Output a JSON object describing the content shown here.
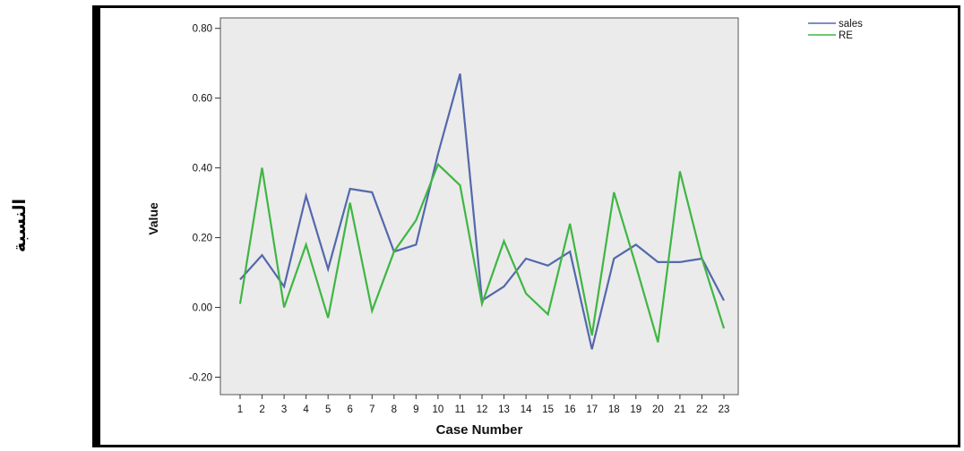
{
  "outer_label": "النسبة",
  "chart_data": {
    "type": "line",
    "xlabel": "Case Number",
    "ylabel": "Value",
    "categories": [
      "1",
      "2",
      "3",
      "4",
      "5",
      "6",
      "7",
      "8",
      "9",
      "10",
      "11",
      "12",
      "13",
      "14",
      "15",
      "16",
      "17",
      "18",
      "19",
      "20",
      "21",
      "22",
      "23"
    ],
    "yticks": [
      {
        "value": 0.8,
        "label": "0.80"
      },
      {
        "value": 0.6,
        "label": "0.60"
      },
      {
        "value": 0.4,
        "label": "0.40"
      },
      {
        "value": 0.2,
        "label": "0.20"
      },
      {
        "value": 0.0,
        "label": "0.00"
      },
      {
        "value": -0.2,
        "label": "-0.20"
      }
    ],
    "ylim": [
      -0.25,
      0.83
    ],
    "grid": false,
    "legend_position": "top-right",
    "series": [
      {
        "name": "sales",
        "color": "#5468ad",
        "values": [
          0.08,
          0.15,
          0.06,
          0.32,
          0.11,
          0.34,
          0.33,
          0.16,
          0.18,
          0.44,
          0.67,
          0.02,
          0.06,
          0.14,
          0.12,
          0.16,
          -0.12,
          0.14,
          0.18,
          0.13,
          0.13,
          0.14,
          0.02
        ]
      },
      {
        "name": "RE",
        "color": "#3fb643",
        "values": [
          0.01,
          0.4,
          0.0,
          0.18,
          -0.03,
          0.3,
          -0.01,
          0.16,
          0.25,
          0.41,
          0.35,
          0.01,
          0.19,
          0.04,
          -0.02,
          0.24,
          -0.08,
          0.33,
          0.12,
          -0.1,
          0.39,
          0.14,
          -0.06
        ]
      }
    ],
    "plot_background": "#ebebeb"
  }
}
